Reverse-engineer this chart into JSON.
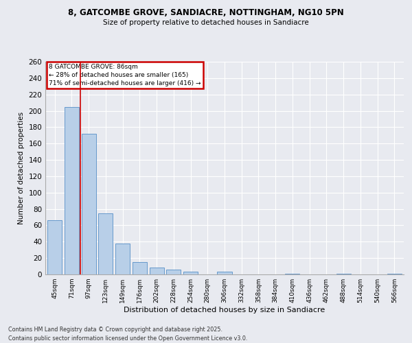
{
  "title1": "8, GATCOMBE GROVE, SANDIACRE, NOTTINGHAM, NG10 5PN",
  "title2": "Size of property relative to detached houses in Sandiacre",
  "xlabel": "Distribution of detached houses by size in Sandiacre",
  "ylabel": "Number of detached properties",
  "categories": [
    "45sqm",
    "71sqm",
    "97sqm",
    "123sqm",
    "149sqm",
    "176sqm",
    "202sqm",
    "228sqm",
    "254sqm",
    "280sqm",
    "306sqm",
    "332sqm",
    "358sqm",
    "384sqm",
    "410sqm",
    "436sqm",
    "462sqm",
    "488sqm",
    "514sqm",
    "540sqm",
    "566sqm"
  ],
  "values": [
    66,
    205,
    172,
    75,
    38,
    15,
    8,
    6,
    3,
    0,
    3,
    0,
    0,
    0,
    1,
    0,
    0,
    1,
    0,
    0,
    1
  ],
  "bar_color": "#b8cfe8",
  "bar_edge_color": "#6699cc",
  "background_color": "#e8eaf0",
  "grid_color": "#ffffff",
  "vline_x": 1.5,
  "vline_color": "#cc0000",
  "annotation_box_title": "8 GATCOMBE GROVE: 86sqm",
  "annotation_line1": "← 28% of detached houses are smaller (165)",
  "annotation_line2": "71% of semi-detached houses are larger (416) →",
  "annotation_box_color": "#cc0000",
  "ylim": [
    0,
    260
  ],
  "yticks": [
    0,
    20,
    40,
    60,
    80,
    100,
    120,
    140,
    160,
    180,
    200,
    220,
    240,
    260
  ],
  "footer1": "Contains HM Land Registry data © Crown copyright and database right 2025.",
  "footer2": "Contains public sector information licensed under the Open Government Licence v3.0."
}
